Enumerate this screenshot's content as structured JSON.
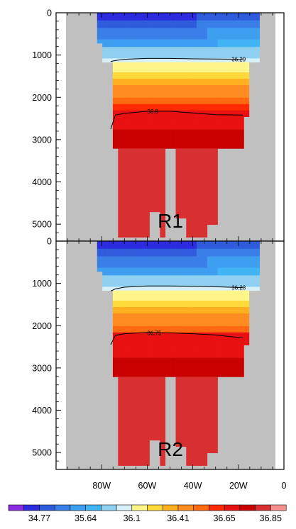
{
  "chart_data": [
    {
      "type": "heatmap",
      "panel_label": "R1",
      "xlim": [
        -100,
        0
      ],
      "ylim": [
        5400,
        0
      ],
      "y_ticks": [
        0,
        1000,
        2000,
        3000,
        4000,
        5000
      ],
      "x_ticks": [],
      "grid": false,
      "contours": [
        {
          "label": "36.29",
          "depth": [
            1150,
            1130,
            1100,
            1080,
            1080,
            1090,
            1095,
            1100
          ],
          "lon": [
            -76,
            -74,
            -70,
            -60,
            -50,
            -40,
            -30,
            -18
          ]
        },
        {
          "label": "36.8",
          "depth": [
            2750,
            2420,
            2380,
            2330,
            2330,
            2370,
            2410,
            2420
          ],
          "lon": [
            -76,
            -74,
            -70,
            -60,
            -50,
            -40,
            -30,
            -18
          ]
        }
      ]
    },
    {
      "type": "heatmap",
      "panel_label": "R2",
      "xlim": [
        -100,
        0
      ],
      "ylim": [
        5400,
        0
      ],
      "y_ticks": [
        0,
        1000,
        2000,
        3000,
        4000,
        5000
      ],
      "x_ticks": [
        "80W",
        "60W",
        "40W",
        "20W",
        "0"
      ],
      "x_tick_values": [
        -80,
        -60,
        -40,
        -20,
        0
      ],
      "grid": false,
      "contours": [
        {
          "label": "36.28",
          "depth": [
            1180,
            1130,
            1090,
            1060,
            1060,
            1070,
            1080,
            1100
          ],
          "lon": [
            -76,
            -74,
            -70,
            -60,
            -50,
            -40,
            -30,
            -18
          ]
        },
        {
          "label": "36.75",
          "depth": [
            2450,
            2230,
            2190,
            2160,
            2170,
            2190,
            2220,
            2290
          ],
          "lon": [
            -76,
            -74,
            -70,
            -60,
            -50,
            -40,
            -30,
            -18
          ]
        }
      ]
    }
  ],
  "colorbar": {
    "colors": [
      "#8a2be2",
      "#2d2be0",
      "#2e5cdc",
      "#3a7ee8",
      "#3e9ef0",
      "#40b4f4",
      "#8fd0f0",
      "#d8f0f8",
      "#fff68a",
      "#ffd83a",
      "#ffb020",
      "#ff8c20",
      "#ff6a10",
      "#ff2a00",
      "#e81010",
      "#c80000",
      "#d83030",
      "#f89090"
    ],
    "labels": [
      "34.77",
      "35.64",
      "36.1",
      "36.41",
      "36.65",
      "36.85"
    ]
  }
}
